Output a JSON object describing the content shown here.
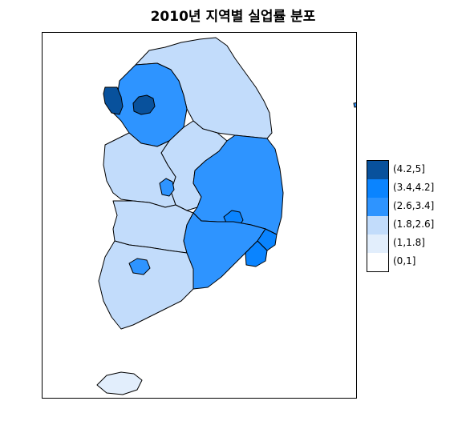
{
  "title": "2010년 지역별 실업률 분포",
  "legend": {
    "items": [
      {
        "label": "(4.2,5]",
        "color": "#08519c"
      },
      {
        "label": "(3.4,4.2]",
        "color": "#0a84ff"
      },
      {
        "label": "(2.6,3.4]",
        "color": "#2e94ff"
      },
      {
        "label": "(1.8,2.6]",
        "color": "#c2dcfb"
      },
      {
        "label": "(1,1.8]",
        "color": "#e2eefc"
      },
      {
        "label": "(0,1]",
        "color": "#ffffff"
      }
    ]
  },
  "regions": [
    {
      "id": "gangwon",
      "class_index": 3
    },
    {
      "id": "gyeonggi",
      "class_index": 2
    },
    {
      "id": "seoul",
      "class_index": 0
    },
    {
      "id": "incheon",
      "class_index": 0
    },
    {
      "id": "chungbuk",
      "class_index": 3
    },
    {
      "id": "chungnam",
      "class_index": 3
    },
    {
      "id": "daejeon",
      "class_index": 2
    },
    {
      "id": "gyeongbuk",
      "class_index": 2
    },
    {
      "id": "daegu",
      "class_index": 1
    },
    {
      "id": "jeonbuk",
      "class_index": 3
    },
    {
      "id": "jeonnam",
      "class_index": 3
    },
    {
      "id": "gwangju",
      "class_index": 2
    },
    {
      "id": "gyeongnam",
      "class_index": 2
    },
    {
      "id": "busan",
      "class_index": 1
    },
    {
      "id": "ulsan",
      "class_index": 1
    },
    {
      "id": "jeju",
      "class_index": 4
    }
  ]
}
